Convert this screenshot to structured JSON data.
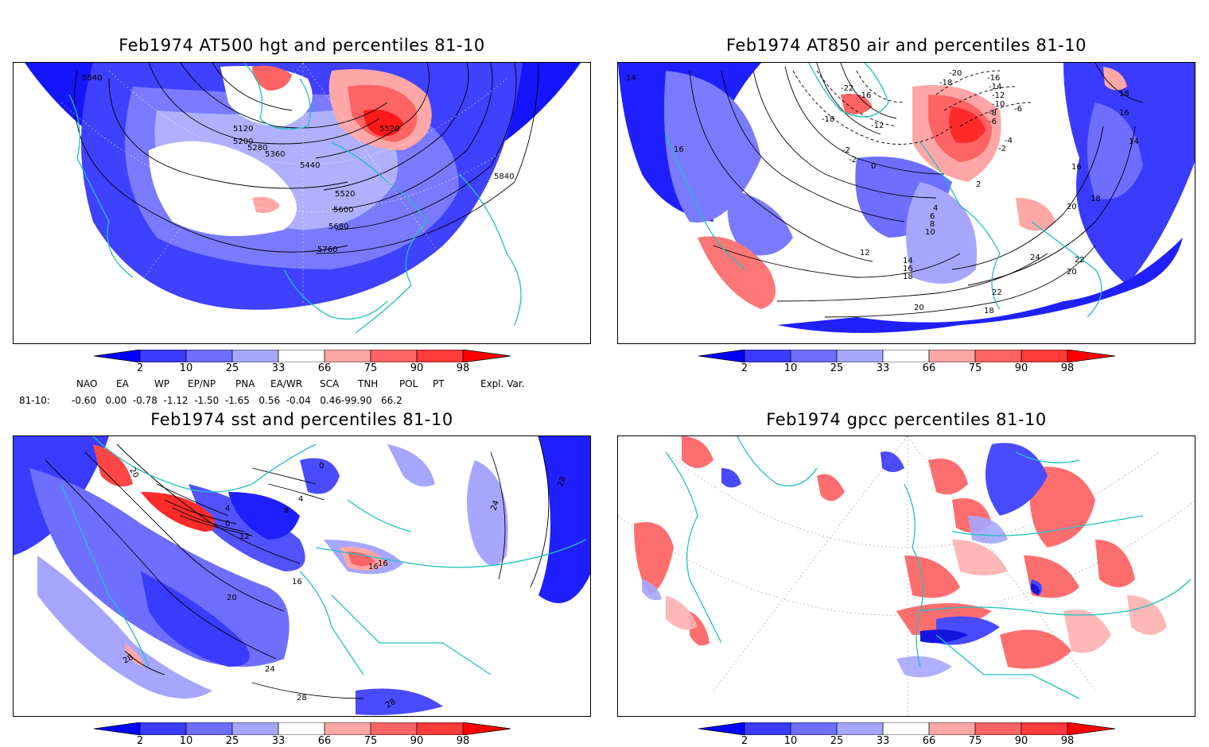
{
  "panels": {
    "tl": {
      "title": "Feb1974 AT500 hgt and percentiles 81-10",
      "contour_labels": [
        "5840",
        "5120",
        "5200",
        "5280",
        "5360",
        "5440",
        "5520",
        "5520",
        "5600",
        "5680",
        "5760",
        "5840"
      ]
    },
    "tr": {
      "title": "Feb1974 AT850 air and percentiles 81-10",
      "contour_labels": [
        "14",
        "-20",
        "-18",
        "-16",
        "-14",
        "-12",
        "-10",
        "-8",
        "-6",
        "-4",
        "-2",
        "-22",
        "-16",
        "-18",
        "-12",
        "0",
        "-2",
        "16",
        "18",
        "16",
        "14",
        "16",
        "18",
        "20",
        "22",
        "20",
        "24",
        "22",
        "18",
        "20",
        "-2",
        "2",
        "4",
        "6",
        "8",
        "10",
        "12",
        "14",
        "16",
        "18",
        "-6"
      ]
    },
    "bl": {
      "title": "Feb1974 sst and percentiles 81-10",
      "contour_labels": [
        "20",
        "0",
        "4",
        "4",
        "8",
        "0",
        "12",
        "16",
        "16",
        "16",
        "20",
        "24",
        "28",
        "28",
        "28",
        "24",
        "28"
      ]
    },
    "br": {
      "title": "Feb1974 gpcc percentiles 81-10"
    }
  },
  "colorbar": {
    "ticks": [
      "2",
      "10",
      "25",
      "33",
      "66",
      "75",
      "90",
      "98"
    ],
    "colors": {
      "lt2": "#0000ff",
      "b2_10": "#3b3bff",
      "b10_25": "#6e6eff",
      "b25_33": "#a6a6ff",
      "r66_75": "#ffa6a6",
      "r75_90": "#ff6464",
      "r90_98": "#ff3a3a",
      "gt98": "#ff0000"
    }
  },
  "indices": {
    "row_label": "81-10:",
    "headers": [
      "NAO",
      "EA",
      "WP",
      "EP/NP",
      "PNA",
      "EA/WR",
      "SCA",
      "TNH",
      "POL",
      "PT",
      "Expl. Var."
    ],
    "values": "-0.60   0.00  -0.78  -1.12  -1.50  -1.65   0.56  -0.04   0.46-99.90   66.2"
  },
  "colors": {
    "coast": "#20c0c0",
    "contour": "#000000"
  }
}
